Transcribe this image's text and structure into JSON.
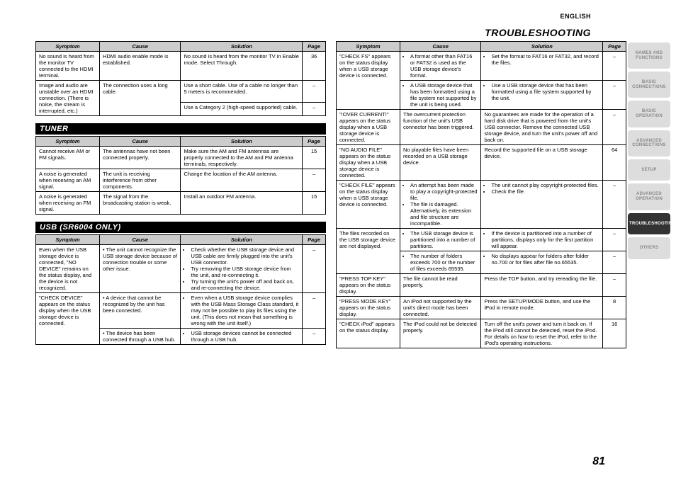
{
  "language": "ENGLISH",
  "headingRight": "TROUBLESHOOTING",
  "pageNumber": "81",
  "headers": {
    "symptom": "Symptom",
    "cause": "Cause",
    "solution": "Solution",
    "page": "Page"
  },
  "sections": {
    "hdmi": {
      "rows": [
        {
          "symptom": "No sound is heard from the monitor TV connected to the HDMI terminal.",
          "cause": "HDMI audio enable mode is established.",
          "solution": "No sound is heard from the monitor TV in Enable mode. Select Through.",
          "page": "36",
          "rows": 1
        },
        {
          "symptom": "Image and audio are unstable over an HDMI connection. (There is noise, the stream is interrupted, etc.)",
          "cause": "The connection uses a long cable.",
          "solution": "Use a short cable. Use of a cable no longer than 5 meters is recommended.",
          "page": "–",
          "rows": 2
        },
        {
          "solution": "Use a Category 2 (high-speed supported) cable.",
          "page": "–"
        }
      ]
    },
    "tuner": {
      "title": "TUNER",
      "rows": [
        {
          "symptom": "Cannot receive AM or FM signals.",
          "cause": "The antennas have not been connected properly.",
          "solution": "Make sure the AM and FM antennas are properly connected to the AM and FM antenna terminals, respectively.",
          "page": "15"
        },
        {
          "symptom": "A noise is generated when receiving an AM signal.",
          "cause": "The unit is receiving interference from other components.",
          "solution": "Change the location of the AM antenna.",
          "page": "–"
        },
        {
          "symptom": "A noise is generated when receiving an FM signal.",
          "cause": "The signal from the broadcasting station is weak.",
          "solution": "Install an outdoor FM antenna.",
          "page": "15"
        }
      ]
    },
    "usb": {
      "title": "USB (SR6004 ONLY)",
      "rows": [
        {
          "symptom": "Even when the USB storage device is connected, \"NO DEVICE\" remains on the status display, and the device is not recognized.",
          "cause": "• The unit cannot recognize the USB storage device because of connection trouble or some other issue.",
          "solution": [
            "Check whether the USB storage device and USB cable are firmly plugged into the unit's USB connector.",
            "Try removing the USB storage device from the unit, and re-connecting it.",
            "Try turning the unit's power off and back on, and re-connecting the device."
          ],
          "page": "–"
        },
        {
          "symptom": "\"CHECK DEVICE\" appears on the status display when the USB storage device is connected.",
          "cause": "• A device that cannot be recognized by the unit has been connected.",
          "solution": [
            "Even when a USB storage device complies with the USB Mass Storage Class standard, it may not be possible to play its files using the unit. (This does not mean that something is wrong with the unit itself.)"
          ],
          "page": "–",
          "rows": 2
        },
        {
          "cause": "• The device has been connected through a USB hub.",
          "solution": [
            "USB storage devices cannot be connected through a USB hub."
          ],
          "page": "–"
        }
      ]
    },
    "usbRight": {
      "rows": [
        {
          "symptom": "\"CHECK FS\" appears on the status display when a USB storage device is connected.",
          "cause": [
            "A format other than FAT16 or FAT32 is used as the USB storage device's format."
          ],
          "solution": [
            "Set the format to FAT16 or FAT32, and record the files."
          ],
          "page": "–",
          "symRows": 2
        },
        {
          "cause": [
            "A USB storage device that has been formatted using a file system not supported by the unit is being used."
          ],
          "solution": [
            "Use a USB storage device that has been formatted using a file system supported by the unit."
          ],
          "page": "–"
        },
        {
          "symptom": "\"!OVER CURRENT!\" appears on the status display when a USB storage device is connected.",
          "cause": "The overcurrent protection function of the unit's USB connector has been triggered.",
          "solution": "No guarantees are made for the operation of a hard disk drive that is powered from the unit's USB connector. Remove the connected USB storage device, and turn the unit's power off and back on.",
          "page": "–"
        },
        {
          "symptom": "\"NO AUDIO FILE\" appears on the status display when a USB storage device is connected.",
          "cause": "No playable files have been recorded on a USB storage device.",
          "solution": "Record the supported file on a USB storage device.",
          "page": "64"
        },
        {
          "symptom": "\"CHECK FILE\" appears on the status display when a USB storage device is connected.",
          "cause": [
            "An attempt has been made to play a copyright-protected file.",
            "The file is damaged. Alternatively, its extension and file structure are incompatible."
          ],
          "solution": [
            "The unit cannot play copyright-protected files.",
            "Check the file."
          ],
          "page": "–"
        },
        {
          "symptom": "The files recorded on the USB storage device are not displayed.",
          "cause": [
            "The USB storage device is partitioned into a number of partitions."
          ],
          "solution": [
            "If the device is partitioned into a number of partitions, displays only for the first partition will appear."
          ],
          "page": "–",
          "symRows": 2
        },
        {
          "cause": [
            "The number of folders exceeds 700 or the number of files exceeds 65535."
          ],
          "solution": [
            "No displays appear for folders after folder no.700 or for files after file no.65535."
          ],
          "page": "–"
        },
        {
          "symptom": "\"PRESS TOP KEY\" appears on the status display.",
          "cause": "The file cannot be read properly.",
          "solution": "Press the TOP button, and try rereading the file.",
          "page": "–"
        },
        {
          "symptom": "\"PRESS MODE KEY\" appears on the status display.",
          "cause": "An iPod not supported by the unit's direct mode has been connected.",
          "solution": "Press the SETUP/MODE button, and use the iPod in remote mode.",
          "page": "8"
        },
        {
          "symptom": "\"CHECK iPod\" appears on the status display.",
          "cause": "The iPod could not be detected properly.",
          "solution": "Turn off the unit's power and turn it back on. If the iPod still cannot be detected, reset the iPod. For details on how to reset the iPod, refer to the iPod's operating instructions.",
          "page": "16"
        }
      ]
    }
  },
  "tabs": [
    {
      "label": "NAMES AND FUNCTIONS",
      "active": false
    },
    {
      "label": "BASIC CONNECTIONS",
      "active": false
    },
    {
      "label": "BASIC OPERATION",
      "active": false
    },
    {
      "label": "ADVANCED CONNECTIONS",
      "active": false
    },
    {
      "label": "SETUP",
      "active": false
    },
    {
      "label": "ADVANCED OPERATION",
      "active": false
    },
    {
      "label": "TROUBLESHOOTING",
      "active": true
    },
    {
      "label": "OTHERS",
      "active": false
    }
  ],
  "colWidths": {
    "symptom": "22%",
    "cause": "28%",
    "solution": "42%",
    "page": "8%"
  }
}
